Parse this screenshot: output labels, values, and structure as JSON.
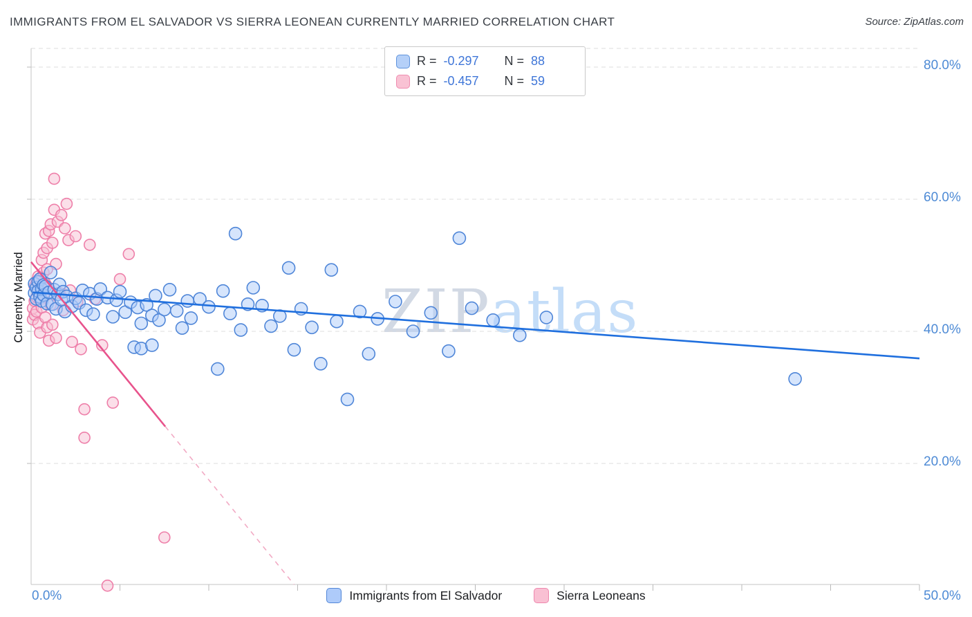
{
  "title": "IMMIGRANTS FROM EL SALVADOR VS SIERRA LEONEAN CURRENTLY MARRIED CORRELATION CHART",
  "source": "Source: ZipAtlas.com",
  "y_axis_label": "Currently Married",
  "watermark": {
    "part1": "ZIP",
    "part2": "atlas"
  },
  "legend_box": {
    "series": [
      {
        "r_label": "R =",
        "r_value": "-0.297",
        "n_label": "N =",
        "n_value": "88"
      },
      {
        "r_label": "R =",
        "r_value": "-0.457",
        "n_label": "N =",
        "n_value": "59"
      }
    ]
  },
  "axes": {
    "x_min_label": "0.0%",
    "x_max_label": "50.0%",
    "y_ticks": [
      {
        "label": "80.0%",
        "value": 80
      },
      {
        "label": "60.0%",
        "value": 60
      },
      {
        "label": "40.0%",
        "value": 40
      },
      {
        "label": "20.0%",
        "value": 20
      }
    ]
  },
  "bottom_legend": [
    {
      "label": "Immigrants from El Salvador"
    },
    {
      "label": "Sierra Leoneans"
    }
  ],
  "chart_data": {
    "type": "scatter",
    "title": "Immigrants from El Salvador vs Sierra Leonean Currently Married",
    "ylabel": "Currently Married",
    "xlim": [
      0,
      0.5
    ],
    "ylim_percent": [
      0,
      85
    ],
    "y_gridlines_percent": [
      20,
      40,
      60,
      80
    ],
    "x_tick_step": 0.05,
    "legend_position": "bottom",
    "grid": true,
    "series": [
      {
        "id": "el-salvador",
        "name": "Immigrants from El Salvador",
        "R": -0.297,
        "N": 88,
        "stroke": "#4f86d8",
        "fill": "#aecbfa",
        "fill_opacity": 0.5,
        "line_color": "#1f6fde",
        "point_radius": 9,
        "trend_solid": [
          0.001,
          45.9,
          0.5,
          35.9
        ],
        "points": [
          [
            0.002,
            47.2
          ],
          [
            0.002,
            45.8
          ],
          [
            0.003,
            46.6
          ],
          [
            0.003,
            44.9
          ],
          [
            0.004,
            47.5
          ],
          [
            0.004,
            46.1
          ],
          [
            0.005,
            45.2
          ],
          [
            0.005,
            47.9
          ],
          [
            0.006,
            46.4
          ],
          [
            0.006,
            44.6
          ],
          [
            0.007,
            47.0
          ],
          [
            0.007,
            45.5
          ],
          [
            0.008,
            46.8
          ],
          [
            0.009,
            44.2
          ],
          [
            0.01,
            45.9
          ],
          [
            0.011,
            48.9
          ],
          [
            0.012,
            44.1
          ],
          [
            0.013,
            46.3
          ],
          [
            0.014,
            43.4
          ],
          [
            0.015,
            45.6
          ],
          [
            0.016,
            47.1
          ],
          [
            0.017,
            44.8
          ],
          [
            0.018,
            46.0
          ],
          [
            0.019,
            43.0
          ],
          [
            0.02,
            45.3
          ],
          [
            0.023,
            43.8
          ],
          [
            0.025,
            45.0
          ],
          [
            0.027,
            44.3
          ],
          [
            0.029,
            46.2
          ],
          [
            0.031,
            43.2
          ],
          [
            0.033,
            45.7
          ],
          [
            0.035,
            42.6
          ],
          [
            0.037,
            44.9
          ],
          [
            0.039,
            46.4
          ],
          [
            0.043,
            45.1
          ],
          [
            0.046,
            42.2
          ],
          [
            0.048,
            44.7
          ],
          [
            0.05,
            46.0
          ],
          [
            0.053,
            42.9
          ],
          [
            0.056,
            44.4
          ],
          [
            0.058,
            37.6
          ],
          [
            0.06,
            43.6
          ],
          [
            0.062,
            41.2
          ],
          [
            0.065,
            44.0
          ],
          [
            0.068,
            42.4
          ],
          [
            0.07,
            45.4
          ],
          [
            0.072,
            41.7
          ],
          [
            0.075,
            43.3
          ],
          [
            0.062,
            37.4
          ],
          [
            0.068,
            37.9
          ],
          [
            0.078,
            46.3
          ],
          [
            0.082,
            43.1
          ],
          [
            0.085,
            40.5
          ],
          [
            0.088,
            44.6
          ],
          [
            0.09,
            42.0
          ],
          [
            0.095,
            44.9
          ],
          [
            0.1,
            43.7
          ],
          [
            0.105,
            34.3
          ],
          [
            0.108,
            46.1
          ],
          [
            0.112,
            42.7
          ],
          [
            0.115,
            54.8
          ],
          [
            0.118,
            40.2
          ],
          [
            0.122,
            44.1
          ],
          [
            0.125,
            46.6
          ],
          [
            0.13,
            43.9
          ],
          [
            0.135,
            40.8
          ],
          [
            0.14,
            42.3
          ],
          [
            0.145,
            49.6
          ],
          [
            0.148,
            37.2
          ],
          [
            0.152,
            43.4
          ],
          [
            0.158,
            40.6
          ],
          [
            0.163,
            35.1
          ],
          [
            0.169,
            49.3
          ],
          [
            0.172,
            41.5
          ],
          [
            0.178,
            29.7
          ],
          [
            0.185,
            43.0
          ],
          [
            0.19,
            36.6
          ],
          [
            0.195,
            41.9
          ],
          [
            0.205,
            44.5
          ],
          [
            0.215,
            40.0
          ],
          [
            0.225,
            42.8
          ],
          [
            0.235,
            37.0
          ],
          [
            0.241,
            54.1
          ],
          [
            0.248,
            43.5
          ],
          [
            0.26,
            41.7
          ],
          [
            0.275,
            39.4
          ],
          [
            0.29,
            42.1
          ],
          [
            0.43,
            32.8
          ]
        ]
      },
      {
        "id": "sierra-leone",
        "name": "Sierra Leoneans",
        "R": -0.457,
        "N": 59,
        "stroke": "#ee7fa9",
        "fill": "#f8c0d4",
        "fill_opacity": 0.5,
        "line_color": "#e8538c",
        "dash_color": "#f2aac4",
        "point_radius": 8,
        "trend_solid": [
          0.0,
          50.5,
          0.0755,
          25.6
        ],
        "trend_dashed": [
          0.0755,
          25.6,
          0.148,
          1.68
        ],
        "points": [
          [
            0.001,
            43.5
          ],
          [
            0.001,
            41.8
          ],
          [
            0.002,
            46.8
          ],
          [
            0.002,
            44.6
          ],
          [
            0.002,
            42.5
          ],
          [
            0.003,
            47.6
          ],
          [
            0.003,
            45.2
          ],
          [
            0.003,
            43.0
          ],
          [
            0.004,
            48.3
          ],
          [
            0.004,
            46.0
          ],
          [
            0.004,
            41.2
          ],
          [
            0.005,
            47.0
          ],
          [
            0.005,
            44.8
          ],
          [
            0.005,
            39.8
          ],
          [
            0.006,
            50.8
          ],
          [
            0.006,
            46.4
          ],
          [
            0.006,
            43.6
          ],
          [
            0.007,
            51.9
          ],
          [
            0.007,
            48.9
          ],
          [
            0.007,
            45.6
          ],
          [
            0.008,
            54.8
          ],
          [
            0.008,
            47.2
          ],
          [
            0.008,
            42.1
          ],
          [
            0.009,
            52.6
          ],
          [
            0.009,
            49.4
          ],
          [
            0.009,
            40.6
          ],
          [
            0.01,
            55.2
          ],
          [
            0.01,
            46.6
          ],
          [
            0.01,
            38.6
          ],
          [
            0.011,
            56.2
          ],
          [
            0.011,
            44.0
          ],
          [
            0.012,
            53.4
          ],
          [
            0.012,
            41.0
          ],
          [
            0.013,
            63.1
          ],
          [
            0.013,
            58.4
          ],
          [
            0.014,
            50.2
          ],
          [
            0.014,
            39.0
          ],
          [
            0.015,
            56.6
          ],
          [
            0.016,
            45.8
          ],
          [
            0.017,
            57.6
          ],
          [
            0.018,
            43.2
          ],
          [
            0.019,
            55.6
          ],
          [
            0.02,
            59.3
          ],
          [
            0.021,
            53.8
          ],
          [
            0.022,
            46.2
          ],
          [
            0.023,
            38.4
          ],
          [
            0.025,
            54.4
          ],
          [
            0.026,
            44.5
          ],
          [
            0.028,
            37.3
          ],
          [
            0.03,
            28.2
          ],
          [
            0.03,
            23.9
          ],
          [
            0.033,
            53.1
          ],
          [
            0.036,
            44.9
          ],
          [
            0.04,
            37.9
          ],
          [
            0.043,
            1.5
          ],
          [
            0.046,
            29.2
          ],
          [
            0.05,
            47.9
          ],
          [
            0.055,
            51.7
          ],
          [
            0.075,
            8.8
          ]
        ]
      }
    ]
  }
}
